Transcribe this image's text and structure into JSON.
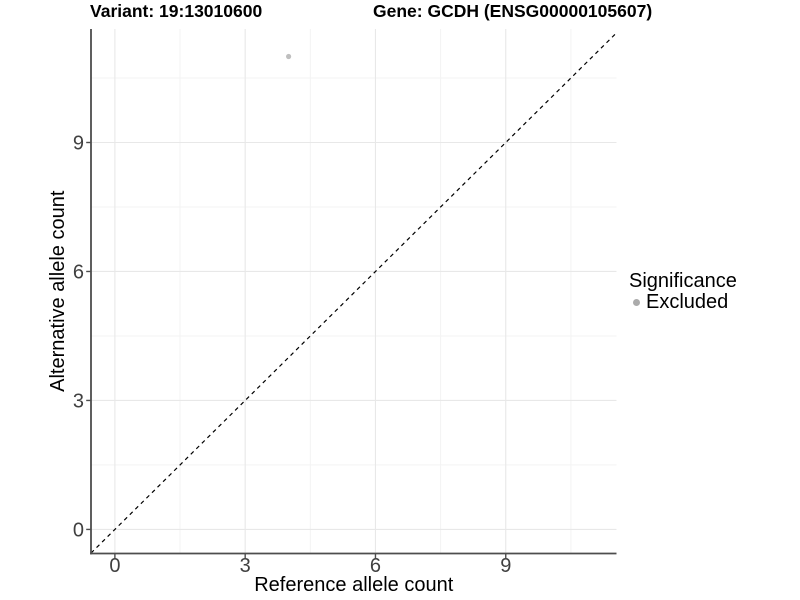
{
  "chart_data": {
    "type": "scatter",
    "titles": [
      "Variant: 19:13010600",
      "Gene: GCDH (ENSG00000105607)"
    ],
    "xlabel": "Reference allele count",
    "ylabel": "Alternative allele count",
    "xlim": [
      -0.55,
      11.55
    ],
    "ylim": [
      -0.56,
      11.64
    ],
    "xticks": [
      0,
      3,
      6,
      9
    ],
    "yticks": [
      0,
      3,
      6,
      9
    ],
    "x_minor_ticks": [
      1.5,
      4.5,
      7.5,
      10.5
    ],
    "y_minor_ticks": [
      1.5,
      4.5,
      7.5,
      10.5
    ],
    "grid": "major and minor gridlines on white panel",
    "legend_position": "right",
    "series": [
      {
        "name": "Excluded",
        "color": "#bfbfbf",
        "points": [
          {
            "x": 4,
            "y": 11
          }
        ]
      }
    ],
    "reference_line": {
      "kind": "identity",
      "equation": "y = x",
      "style": "dashed",
      "color": "#000000"
    },
    "legend": {
      "title": "Significance",
      "items": [
        {
          "label": "Excluded",
          "color": "#ababab"
        }
      ]
    },
    "colors": {
      "background": "#ffffff",
      "grid_major": "#e8e8e8",
      "grid_minor": "#f3f3f3",
      "axis_line": "#4d4d4d",
      "tick_label": "#404040",
      "axis_title": "#000000"
    }
  }
}
